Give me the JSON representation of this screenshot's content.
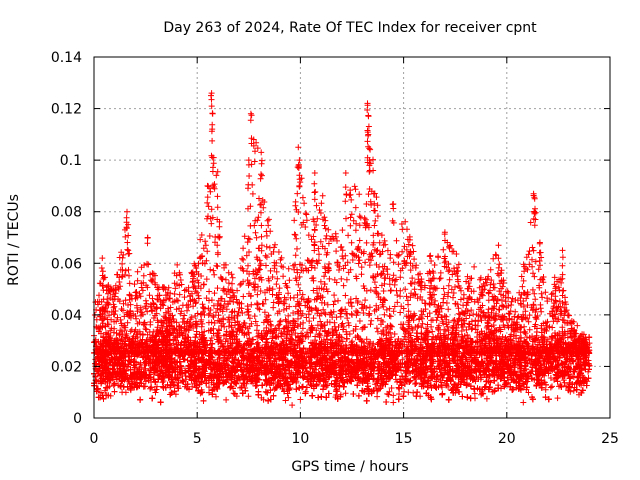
{
  "chart_data": {
    "type": "scatter",
    "title": "Day 263 of 2024, Rate Of TEC Index for receiver cpnt",
    "xlabel": "GPS time / hours",
    "ylabel": "ROTI / TECUs",
    "xlim": [
      0,
      25
    ],
    "ylim": [
      0,
      0.14
    ],
    "x_ticks": [
      0,
      5,
      10,
      15,
      20,
      25
    ],
    "y_ticks": [
      0,
      0.02,
      0.04,
      0.06,
      0.08,
      0.1,
      0.12,
      0.14
    ],
    "x_tick_labels": [
      "0",
      "5",
      "10",
      "15",
      "20",
      "25"
    ],
    "y_tick_labels": [
      "0",
      "0.02",
      "0.04",
      "0.06",
      "0.08",
      "0.1",
      "0.12",
      "0.14"
    ],
    "grid": true,
    "legend": "none",
    "marker": "plus",
    "marker_color": "#ff0000",
    "x_range_of_data": [
      0,
      24
    ],
    "band_median_y": 0.02,
    "band_upper_y": [
      [
        0,
        0.05
      ],
      [
        0.5,
        0.055
      ],
      [
        1,
        0.05
      ],
      [
        1.5,
        0.075
      ],
      [
        2,
        0.055
      ],
      [
        2.5,
        0.065
      ],
      [
        3,
        0.055
      ],
      [
        3.5,
        0.05
      ],
      [
        4,
        0.06
      ],
      [
        4.5,
        0.05
      ],
      [
        5,
        0.065
      ],
      [
        5.5,
        0.08
      ],
      [
        5.8,
        0.125
      ],
      [
        6.2,
        0.065
      ],
      [
        6.5,
        0.06
      ],
      [
        7,
        0.05
      ],
      [
        7.5,
        0.09
      ],
      [
        7.8,
        0.115
      ],
      [
        8.2,
        0.095
      ],
      [
        8.6,
        0.07
      ],
      [
        9,
        0.065
      ],
      [
        9.5,
        0.06
      ],
      [
        10,
        0.105
      ],
      [
        10.5,
        0.075
      ],
      [
        11,
        0.09
      ],
      [
        11.5,
        0.07
      ],
      [
        12,
        0.075
      ],
      [
        12.5,
        0.095
      ],
      [
        13,
        0.085
      ],
      [
        13.3,
        0.12
      ],
      [
        13.7,
        0.085
      ],
      [
        14,
        0.07
      ],
      [
        14.5,
        0.065
      ],
      [
        15,
        0.08
      ],
      [
        15.5,
        0.065
      ],
      [
        16,
        0.055
      ],
      [
        16.5,
        0.06
      ],
      [
        17,
        0.07
      ],
      [
        17.5,
        0.065
      ],
      [
        18,
        0.055
      ],
      [
        18.5,
        0.06
      ],
      [
        19,
        0.055
      ],
      [
        19.5,
        0.065
      ],
      [
        20,
        0.05
      ],
      [
        20.5,
        0.045
      ],
      [
        21,
        0.07
      ],
      [
        21.3,
        0.085
      ],
      [
        21.7,
        0.065
      ],
      [
        22,
        0.045
      ],
      [
        22.5,
        0.06
      ],
      [
        23,
        0.04
      ],
      [
        23.5,
        0.035
      ],
      [
        24,
        0.03
      ]
    ],
    "spikes": [
      [
        5.7,
        0.126
      ],
      [
        5.75,
        0.118
      ],
      [
        5.8,
        0.101
      ],
      [
        5.5,
        0.09
      ],
      [
        7.6,
        0.118
      ],
      [
        7.5,
        0.1
      ],
      [
        8.1,
        0.103
      ],
      [
        9.9,
        0.105
      ],
      [
        9.95,
        0.1
      ],
      [
        10.7,
        0.095
      ],
      [
        12.2,
        0.095
      ],
      [
        13.25,
        0.122
      ],
      [
        13.3,
        0.117
      ],
      [
        13.35,
        0.1
      ],
      [
        13.2,
        0.083
      ],
      [
        14.5,
        0.083
      ],
      [
        21.3,
        0.087
      ],
      [
        21.35,
        0.085
      ],
      [
        19.6,
        0.067
      ],
      [
        22.7,
        0.065
      ],
      [
        1.6,
        0.08
      ],
      [
        1.65,
        0.075
      ],
      [
        0.4,
        0.062
      ],
      [
        2.6,
        0.07
      ],
      [
        17.0,
        0.072
      ],
      [
        16.3,
        0.063
      ]
    ],
    "low_outliers": [
      [
        0.3,
        0.008
      ],
      [
        9.6,
        0.005
      ],
      [
        14.5,
        0.006
      ],
      [
        20.8,
        0.006
      ],
      [
        23.5,
        0.009
      ],
      [
        6.4,
        0.007
      ]
    ]
  }
}
